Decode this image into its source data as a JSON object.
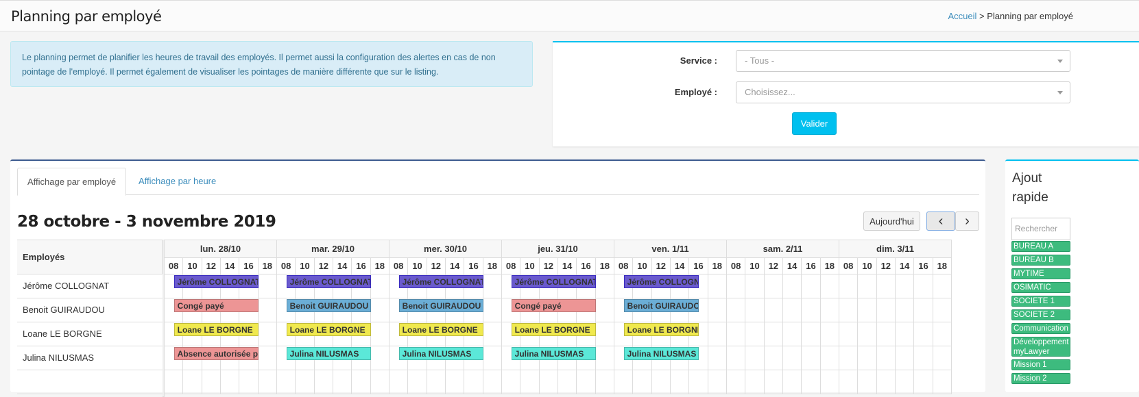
{
  "header": {
    "title": "Planning par employé",
    "breadcrumb_home": "Accueil",
    "breadcrumb_sep": " > ",
    "breadcrumb_current": "Planning par employé"
  },
  "info": "Le planning permet de planifier les heures de travail des employés. Il permet aussi la configuration des alertes en cas de non pointage de l'employé. Il permet également de visualiser les pointages de manière différente que sur le listing.",
  "filters": {
    "service_label": "Service :",
    "service_value": "- Tous -",
    "employee_label": "Employé :",
    "employee_placeholder": "Choisissez...",
    "submit": "Valider"
  },
  "tabs": [
    {
      "label": "Affichage par employé",
      "active": true
    },
    {
      "label": "Affichage par heure",
      "active": false
    }
  ],
  "calendar": {
    "range": "28 octobre - 3 novembre 2019",
    "today": "Aujourd'hui",
    "prev": "‹",
    "next": "›",
    "employees_header": "Employés",
    "days": [
      "lun. 28/10",
      "mar. 29/10",
      "mer. 30/10",
      "jeu. 31/10",
      "ven. 1/11",
      "sam. 2/11",
      "dim. 3/11"
    ],
    "hours": [
      "08",
      "10",
      "12",
      "14",
      "16",
      "18"
    ],
    "employees": [
      "Jérôme COLLOGNAT",
      "Benoit GUIRAUDOU",
      "Loane LE BORGNE",
      "Julina NILUSMAS"
    ],
    "colors": {
      "purple": "#6a5acd",
      "blue": "#6baed6",
      "red": "#ed9595",
      "yellow": "#f0e94e",
      "cyan": "#5be8d8"
    },
    "events": [
      {
        "row": 0,
        "day": 0,
        "start": 9,
        "end": 18,
        "label": "Jérôme COLLOGNAT",
        "color": "purple"
      },
      {
        "row": 0,
        "day": 1,
        "start": 9,
        "end": 18,
        "label": "Jérôme COLLOGNAT",
        "color": "purple"
      },
      {
        "row": 0,
        "day": 2,
        "start": 9,
        "end": 18,
        "label": "Jérôme COLLOGNAT",
        "color": "purple"
      },
      {
        "row": 0,
        "day": 3,
        "start": 9,
        "end": 18,
        "label": "Jérôme COLLOGNAT",
        "color": "purple"
      },
      {
        "row": 0,
        "day": 4,
        "start": 9,
        "end": 17,
        "label": "Jérôme COLLOGNAT",
        "color": "purple"
      },
      {
        "row": 1,
        "day": 0,
        "start": 9,
        "end": 18,
        "label": "Congé payé",
        "color": "red"
      },
      {
        "row": 1,
        "day": 1,
        "start": 9,
        "end": 18,
        "label": "Benoit GUIRAUDOU",
        "color": "blue"
      },
      {
        "row": 1,
        "day": 2,
        "start": 9,
        "end": 18,
        "label": "Benoit GUIRAUDOU",
        "color": "blue"
      },
      {
        "row": 1,
        "day": 3,
        "start": 9,
        "end": 18,
        "label": "Congé payé",
        "color": "red"
      },
      {
        "row": 1,
        "day": 4,
        "start": 9,
        "end": 17,
        "label": "Benoit GUIRAUDOU",
        "color": "blue"
      },
      {
        "row": 2,
        "day": 0,
        "start": 9,
        "end": 18,
        "label": "Loane LE BORGNE",
        "color": "yellow"
      },
      {
        "row": 2,
        "day": 1,
        "start": 9,
        "end": 18,
        "label": "Loane LE BORGNE",
        "color": "yellow"
      },
      {
        "row": 2,
        "day": 2,
        "start": 9,
        "end": 18,
        "label": "Loane LE BORGNE",
        "color": "yellow"
      },
      {
        "row": 2,
        "day": 3,
        "start": 9,
        "end": 18,
        "label": "Loane LE BORGNE",
        "color": "yellow"
      },
      {
        "row": 2,
        "day": 4,
        "start": 9,
        "end": 17,
        "label": "Loane LE BORGNE",
        "color": "yellow"
      },
      {
        "row": 3,
        "day": 0,
        "start": 9,
        "end": 18,
        "label": "Absence autorisée payée",
        "color": "red"
      },
      {
        "row": 3,
        "day": 1,
        "start": 9,
        "end": 18,
        "label": "Julina NILUSMAS",
        "color": "cyan"
      },
      {
        "row": 3,
        "day": 2,
        "start": 9,
        "end": 18,
        "label": "Julina NILUSMAS",
        "color": "cyan"
      },
      {
        "row": 3,
        "day": 3,
        "start": 9,
        "end": 18,
        "label": "Julina NILUSMAS",
        "color": "cyan"
      },
      {
        "row": 3,
        "day": 4,
        "start": 9,
        "end": 17,
        "label": "Julina NILUSMAS",
        "color": "cyan"
      }
    ]
  },
  "quick_add": {
    "title": "Ajout rapide",
    "search_placeholder": "Rechercher",
    "items": [
      "BUREAU A",
      "BUREAU B",
      "MYTIME",
      "OSIMATIC",
      "SOCIETE 1",
      "SOCIETE 2",
      "Communication",
      "Développement myLawyer",
      "Mission 1",
      "Mission 2"
    ]
  }
}
